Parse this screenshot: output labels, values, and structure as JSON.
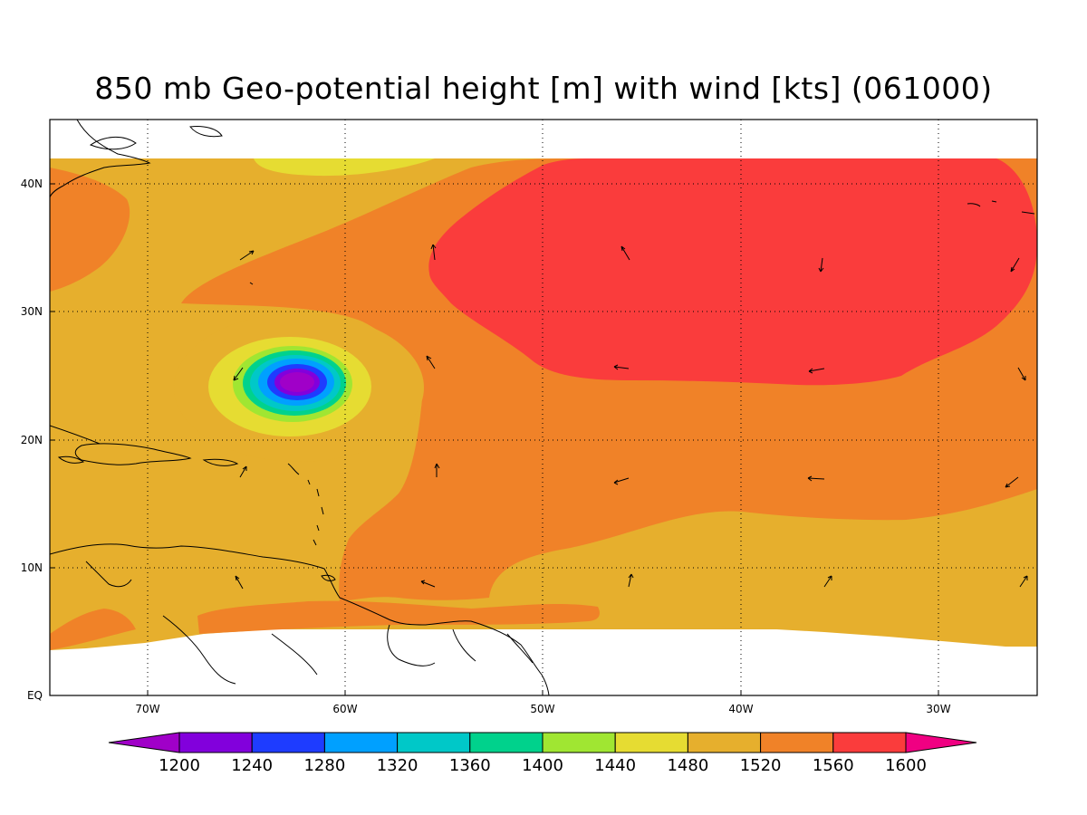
{
  "title": "850 mb Geo-potential height [m] with wind [kts] (061000)",
  "latitude_labels": [
    "40N",
    "30N",
    "20N",
    "10N",
    "EQ"
  ],
  "longitude_labels": [
    "70W",
    "60W",
    "50W",
    "40W",
    "30W"
  ],
  "colorbar": {
    "levels": [
      "1200",
      "1240",
      "1280",
      "1320",
      "1360",
      "1400",
      "1440",
      "1480",
      "1520",
      "1560",
      "1600"
    ],
    "colors": [
      "#a000c8",
      "#8200dc",
      "#1e3cff",
      "#00a0ff",
      "#00c8c8",
      "#00d28c",
      "#a0e632",
      "#e6dc32",
      "#e6af2d",
      "#f08228",
      "#fa3c3c",
      "#f00082"
    ]
  },
  "fields": {
    "ocean_fill": "#e6af2d",
    "high_1560": "#f08228",
    "high_1600": "#fa3c3c",
    "low_1480": "#e6dc32"
  }
}
